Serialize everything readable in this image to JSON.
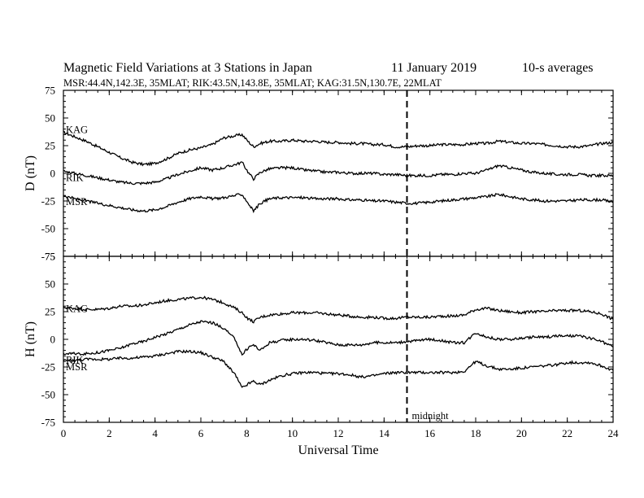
{
  "header": {
    "title_main": "Magnetic Field Variations at 3 Stations in Japan",
    "date": "11 January 2019",
    "averaging": "10-s averages",
    "stations_info": "MSR:44.4N,142.3E, 35MLAT;  RIK:43.5N,143.8E, 35MLAT;  KAG:31.5N,130.7E, 22MLAT"
  },
  "chart_data": {
    "type": "line",
    "xlabel": "Universal Time",
    "xlim": [
      0,
      24
    ],
    "x_ticks": [
      0,
      2,
      4,
      6,
      8,
      10,
      12,
      14,
      16,
      18,
      20,
      22,
      24
    ],
    "x": [
      0,
      0.5,
      1,
      1.5,
      2,
      2.5,
      3,
      3.5,
      4,
      4.5,
      5,
      5.5,
      6,
      6.5,
      7,
      7.5,
      7.8,
      8.1,
      8.3,
      8.6,
      9,
      9.5,
      10,
      10.5,
      11,
      11.5,
      12,
      12.5,
      13,
      13.5,
      14,
      14.5,
      15,
      15.5,
      16,
      16.5,
      17,
      17.5,
      18,
      18.5,
      19,
      19.5,
      20,
      20.5,
      21,
      21.5,
      22,
      22.5,
      23,
      23.5,
      24
    ],
    "marker": {
      "x": 15,
      "label": "midnight"
    },
    "panels": [
      {
        "ylabel": "D (nT)",
        "ylim": [
          -75,
          75
        ],
        "y_ticks": [
          75,
          50,
          25,
          0,
          -25,
          -50,
          -75
        ],
        "series": [
          {
            "name": "KAG",
            "values": [
              37,
              33,
              29,
              24,
              19,
              14,
              10,
              8,
              9,
              13,
              18,
              21,
              23,
              26,
              32,
              34,
              35,
              28,
              24,
              27,
              29,
              29,
              30,
              29,
              29,
              28,
              28,
              27,
              27,
              26,
              26,
              24,
              24,
              25,
              25,
              26,
              26,
              26,
              27,
              27,
              29,
              28,
              27,
              27,
              26,
              25,
              24,
              24,
              25,
              27,
              28
            ]
          },
          {
            "name": "RIK",
            "values": [
              2,
              0,
              -2,
              -4,
              -6,
              -8,
              -9,
              -9,
              -8,
              -5,
              -1,
              2,
              5,
              3,
              5,
              8,
              10,
              0,
              -5,
              1,
              4,
              5,
              5,
              3,
              2,
              1,
              1,
              0,
              0,
              0,
              -1,
              -1,
              -2,
              -2,
              -2,
              -1,
              -1,
              0,
              0,
              3,
              7,
              5,
              3,
              1,
              0,
              -1,
              -1,
              -1,
              -2,
              -2,
              -2
            ]
          },
          {
            "name": "MSR",
            "values": [
              -20,
              -23,
              -25,
              -27,
              -29,
              -31,
              -33,
              -34,
              -33,
              -30,
              -26,
              -23,
              -21,
              -23,
              -22,
              -20,
              -19,
              -28,
              -34,
              -27,
              -23,
              -22,
              -22,
              -22,
              -23,
              -23,
              -23,
              -24,
              -24,
              -25,
              -25,
              -26,
              -27,
              -27,
              -26,
              -25,
              -24,
              -23,
              -22,
              -21,
              -19,
              -21,
              -23,
              -24,
              -25,
              -25,
              -25,
              -24,
              -24,
              -24,
              -26
            ]
          }
        ]
      },
      {
        "ylabel": "H (nT)",
        "ylim": [
          -75,
          75
        ],
        "y_ticks": [
          75,
          50,
          25,
          0,
          -25,
          -50,
          -75
        ],
        "series": [
          {
            "name": "KAG",
            "values": [
              29,
              28,
              27,
              27,
              28,
              30,
              30,
              31,
              33,
              35,
              36,
              37,
              38,
              36,
              33,
              28,
              24,
              18,
              16,
              20,
              22,
              23,
              24,
              24,
              24,
              23,
              22,
              21,
              20,
              20,
              19,
              19,
              20,
              20,
              20,
              21,
              21,
              22,
              27,
              28,
              26,
              25,
              24,
              25,
              25,
              26,
              26,
              26,
              25,
              23,
              18
            ]
          },
          {
            "name": "RIK",
            "values": [
              -13,
              -13,
              -13,
              -12,
              -10,
              -8,
              -4,
              -2,
              2,
              5,
              9,
              13,
              16,
              15,
              10,
              0,
              -14,
              -7,
              -5,
              -10,
              -3,
              -1,
              0,
              0,
              -1,
              -3,
              -5,
              -5,
              -5,
              -3,
              -3,
              -3,
              -2,
              -1,
              0,
              -1,
              -3,
              -3,
              6,
              2,
              0,
              0,
              1,
              2,
              2,
              3,
              3,
              3,
              1,
              -2,
              -7
            ]
          },
          {
            "name": "MSR",
            "values": [
              -19,
              -19,
              -18,
              -18,
              -18,
              -17,
              -17,
              -16,
              -15,
              -13,
              -11,
              -11,
              -12,
              -16,
              -20,
              -32,
              -44,
              -40,
              -38,
              -41,
              -37,
              -33,
              -31,
              -30,
              -30,
              -31,
              -31,
              -32,
              -34,
              -33,
              -31,
              -30,
              -30,
              -30,
              -30,
              -30,
              -30,
              -29,
              -20,
              -24,
              -27,
              -27,
              -26,
              -25,
              -24,
              -23,
              -21,
              -21,
              -21,
              -24,
              -28
            ]
          }
        ]
      }
    ]
  }
}
